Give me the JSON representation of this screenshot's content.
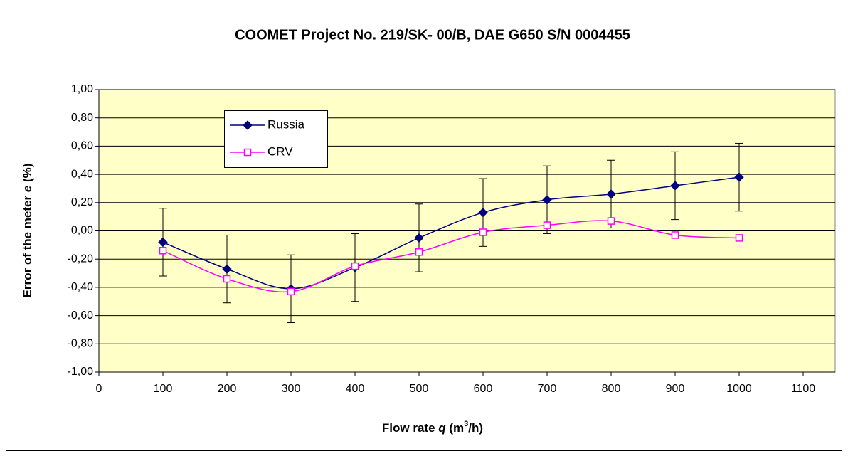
{
  "chart_data": {
    "type": "line",
    "title": "COOMET Project  No. 219/SK- 00/B, DAE G650 S/N 0004455",
    "x_label_parts": [
      "Flow rate ",
      "q",
      " (m",
      "3",
      "/h)"
    ],
    "y_label_parts": [
      "Error of the meter ",
      "e",
      " (%)"
    ],
    "x": [
      100,
      200,
      300,
      400,
      500,
      600,
      700,
      800,
      900,
      1000
    ],
    "series": [
      {
        "name": "Russia",
        "color": "#000080",
        "marker": "diamond",
        "values": [
          -0.08,
          -0.27,
          -0.41,
          -0.26,
          -0.05,
          0.13,
          0.22,
          0.26,
          0.32,
          0.38
        ],
        "errors": [
          0.24,
          0.24,
          0.24,
          0.24,
          0.24,
          0.24,
          0.24,
          0.24,
          0.24,
          0.24
        ]
      },
      {
        "name": "CRV",
        "color": "#FF00FF",
        "marker": "square-open",
        "values": [
          -0.14,
          -0.34,
          -0.43,
          -0.25,
          -0.15,
          -0.01,
          0.04,
          0.07,
          -0.03,
          -0.05
        ]
      }
    ],
    "xlim": [
      0,
      1150
    ],
    "xticks": [
      0,
      100,
      200,
      300,
      400,
      500,
      600,
      700,
      800,
      900,
      1000,
      1100
    ],
    "ylim": [
      -1,
      1
    ],
    "yticks": [
      {
        "value": -1,
        "label": "-1,00"
      },
      {
        "value": -0.8,
        "label": "-0,80"
      },
      {
        "value": -0.6,
        "label": "-0,60"
      },
      {
        "value": -0.4,
        "label": "-0,40"
      },
      {
        "value": -0.2,
        "label": "-0,20"
      },
      {
        "value": 0,
        "label": "0,00"
      },
      {
        "value": 0.2,
        "label": "0,20"
      },
      {
        "value": 0.4,
        "label": "0,40"
      },
      {
        "value": 0.6,
        "label": "0,60"
      },
      {
        "value": 0.8,
        "label": "0,80"
      },
      {
        "value": 1,
        "label": "1,00"
      }
    ],
    "grid": true,
    "legend": "top-left",
    "plot_background": "#FFFFC8",
    "smooth": true
  }
}
